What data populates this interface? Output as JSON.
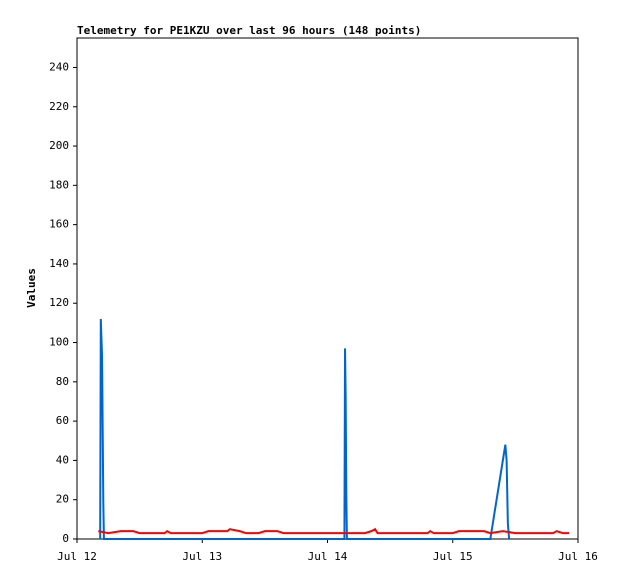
{
  "chart_data": {
    "type": "line",
    "title": "Telemetry for PE1KZU over last 96 hours (148 points)",
    "y_label": "Values",
    "xlim": [
      0,
      4
    ],
    "xticks": [
      {
        "value": 0,
        "label": "Jul 12"
      },
      {
        "value": 1,
        "label": "Jul 13"
      },
      {
        "value": 2,
        "label": "Jul 14"
      },
      {
        "value": 3,
        "label": "Jul 15"
      },
      {
        "value": 4,
        "label": "Jul 16"
      }
    ],
    "ylim": [
      0,
      255
    ],
    "yticks": [
      0,
      20,
      40,
      60,
      80,
      100,
      120,
      140,
      160,
      180,
      200,
      220,
      240
    ],
    "grid": false,
    "series": [
      {
        "color": "#0066cc",
        "x": [
          0.185,
          0.19,
          0.2,
          0.205,
          0.21,
          0.215,
          2.135,
          2.14,
          2.145,
          2.15,
          2.155,
          3.3,
          3.42,
          3.43,
          3.44,
          3.45
        ],
        "values": [
          0,
          112,
          93,
          56,
          19,
          0,
          0,
          97,
          72,
          24,
          0,
          0,
          48,
          40,
          8,
          0
        ]
      },
      {
        "color": "#ff0000",
        "x": [
          0.17,
          0.25,
          0.35,
          0.45,
          0.5,
          0.7,
          0.72,
          0.75,
          1.0,
          1.05,
          1.2,
          1.22,
          1.3,
          1.35,
          1.45,
          1.5,
          1.6,
          1.65,
          2.0,
          2.3,
          2.35,
          2.38,
          2.4,
          2.8,
          2.82,
          2.85,
          3.0,
          3.05,
          3.25,
          3.3,
          3.4,
          3.5,
          3.8,
          3.83,
          3.88,
          3.93
        ],
        "values": [
          4,
          3,
          4,
          4,
          3,
          3,
          4,
          3,
          3,
          4,
          4,
          5,
          4,
          3,
          3,
          4,
          4,
          3,
          3,
          3,
          4,
          5,
          3,
          3,
          4,
          3,
          3,
          4,
          4,
          3,
          4,
          3,
          3,
          4,
          3,
          3
        ]
      }
    ]
  }
}
